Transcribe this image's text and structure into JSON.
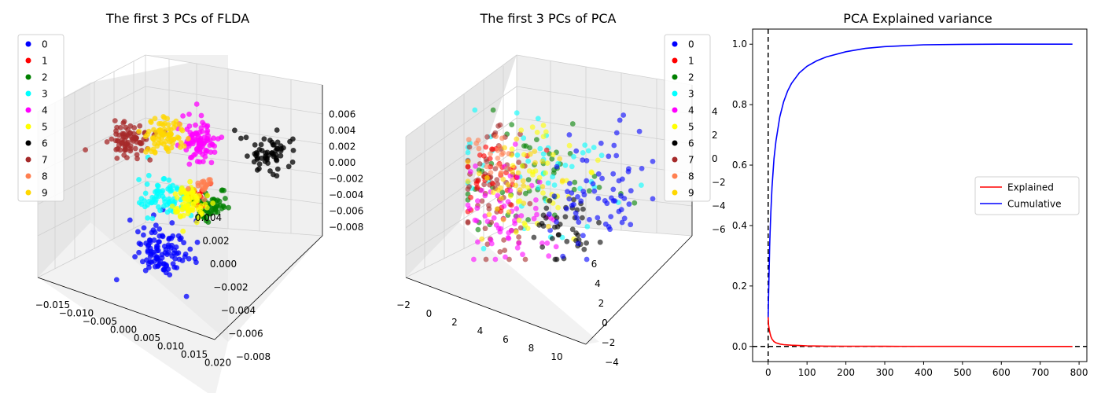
{
  "chart_data": [
    {
      "type": "scatter",
      "title": "The first 3 PCs of FLDA",
      "x_ticks": [
        "−0.015",
        "−0.010",
        "−0.005",
        "0.000",
        "0.005",
        "0.010",
        "0.015",
        "0.020"
      ],
      "y_ticks": [
        "−0.008",
        "−0.006",
        "−0.004",
        "−0.002",
        "0.000",
        "0.002",
        "0.004"
      ],
      "z_ticks": [
        "−0.008",
        "−0.006",
        "−0.004",
        "−0.002",
        "0.000",
        "0.002",
        "0.004",
        "0.006"
      ],
      "legend_position": "top-left",
      "legend": [
        {
          "label": "0",
          "color": "#0000ff"
        },
        {
          "label": "1",
          "color": "#ff0000"
        },
        {
          "label": "2",
          "color": "#008000"
        },
        {
          "label": "3",
          "color": "#00ffff"
        },
        {
          "label": "4",
          "color": "#ff00ff"
        },
        {
          "label": "5",
          "color": "#ffff00"
        },
        {
          "label": "6",
          "color": "#000000"
        },
        {
          "label": "7",
          "color": "#a52a2a"
        },
        {
          "label": "8",
          "color": "#ff7f50"
        },
        {
          "label": "9",
          "color": "#ffd700"
        }
      ]
    },
    {
      "type": "scatter",
      "title": "The first 3 PCs of PCA",
      "x_ticks": [
        "−2",
        "0",
        "2",
        "4",
        "6",
        "8",
        "10"
      ],
      "y_ticks": [
        "−4",
        "−2",
        "0",
        "2",
        "4",
        "6"
      ],
      "z_ticks": [
        "−6",
        "−4",
        "−2",
        "0",
        "2",
        "4"
      ],
      "legend_position": "top-right",
      "legend": [
        {
          "label": "0",
          "color": "#0000ff"
        },
        {
          "label": "1",
          "color": "#ff0000"
        },
        {
          "label": "2",
          "color": "#008000"
        },
        {
          "label": "3",
          "color": "#00ffff"
        },
        {
          "label": "4",
          "color": "#ff00ff"
        },
        {
          "label": "5",
          "color": "#ffff00"
        },
        {
          "label": "6",
          "color": "#000000"
        },
        {
          "label": "7",
          "color": "#a52a2a"
        },
        {
          "label": "8",
          "color": "#ff7f50"
        },
        {
          "label": "9",
          "color": "#ffd700"
        }
      ]
    },
    {
      "type": "line",
      "title": "PCA Explained variance",
      "xlim": [
        -40,
        820
      ],
      "ylim": [
        -0.05,
        1.05
      ],
      "x_ticks": [
        0,
        100,
        200,
        300,
        400,
        500,
        600,
        700,
        800
      ],
      "y_ticks": [
        0.0,
        0.2,
        0.4,
        0.6,
        0.8,
        1.0
      ],
      "y_tick_labels": [
        "0.0",
        "0.2",
        "0.4",
        "0.6",
        "0.8",
        "1.0"
      ],
      "reference_lines": {
        "x": 0,
        "y": 0,
        "style": "dashed",
        "color": "#000000"
      },
      "legend_position": "center-right",
      "series": [
        {
          "name": "Explained",
          "color": "#ff0000",
          "x": [
            0,
            1,
            2,
            3,
            4,
            5,
            7,
            10,
            15,
            20,
            30,
            40,
            60,
            80,
            100,
            150,
            200,
            300,
            400,
            500,
            600,
            700,
            783
          ],
          "y": [
            0.097,
            0.071,
            0.062,
            0.054,
            0.049,
            0.043,
            0.033,
            0.024,
            0.016,
            0.012,
            0.008,
            0.006,
            0.004,
            0.003,
            0.002,
            0.001,
            0.0008,
            0.0004,
            0.0002,
            0.0001,
            0.0,
            0.0,
            0.0
          ]
        },
        {
          "name": "Cumulative",
          "color": "#0000ff",
          "x": [
            0,
            1,
            2,
            3,
            4,
            5,
            7,
            10,
            15,
            20,
            30,
            40,
            50,
            60,
            80,
            100,
            125,
            150,
            200,
            250,
            300,
            400,
            500,
            600,
            700,
            783
          ],
          "y": [
            0.097,
            0.168,
            0.23,
            0.284,
            0.333,
            0.376,
            0.445,
            0.528,
            0.622,
            0.68,
            0.76,
            0.81,
            0.845,
            0.87,
            0.905,
            0.927,
            0.945,
            0.958,
            0.975,
            0.986,
            0.992,
            0.998,
            0.9995,
            1.0,
            1.0,
            1.0
          ]
        }
      ]
    }
  ]
}
